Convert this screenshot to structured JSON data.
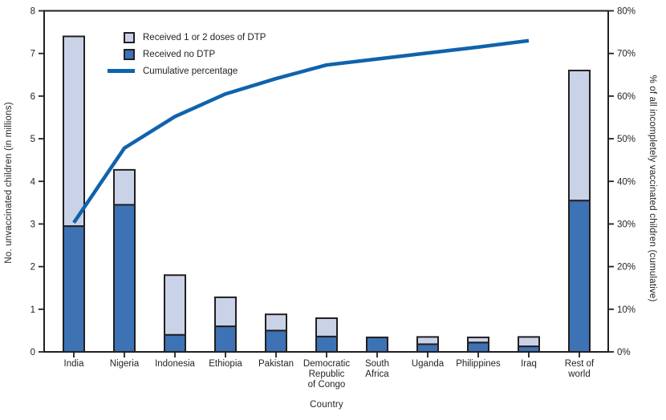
{
  "chart_data": {
    "type": "bar",
    "subtype": "pareto-stacked-bar-with-cumulative-line",
    "title": "",
    "xlabel": "Country",
    "ylabel_left": "No. unvaccinated children (in millions)",
    "ylabel_right": "% of all incompletely vaccinated children (cumulative)",
    "ylim_left": [
      0,
      8
    ],
    "ylim_right_pct": [
      0,
      80
    ],
    "yticks_left": [
      0,
      1,
      2,
      3,
      4,
      5,
      6,
      7,
      8
    ],
    "yticks_right_pct": [
      0,
      10,
      20,
      30,
      40,
      50,
      60,
      70,
      80
    ],
    "grid": "off",
    "legend_position": "top-left-inside",
    "categories": [
      "India",
      "Nigeria",
      "Indonesia",
      "Ethiopia",
      "Pakistan",
      "Democratic\nRepublic\nof Congo",
      "South\nAfrica",
      "Uganda",
      "Philippines",
      "Iraq",
      "Rest of\nworld"
    ],
    "series": [
      {
        "name": "Received no DTP",
        "stack_order": "bottom",
        "color": "#3d72b5",
        "values": [
          2.95,
          3.45,
          0.4,
          0.6,
          0.5,
          0.36,
          0.34,
          0.18,
          0.22,
          0.13,
          3.55
        ]
      },
      {
        "name": "Received 1 or 2 doses of DTP",
        "stack_order": "top",
        "color": "#c9d2e7",
        "values": [
          4.45,
          0.82,
          1.4,
          0.68,
          0.38,
          0.43,
          0.0,
          0.17,
          0.12,
          0.22,
          3.05
        ]
      }
    ],
    "bar_totals": [
      7.4,
      4.27,
      1.8,
      1.28,
      0.88,
      0.79,
      0.34,
      0.35,
      0.34,
      0.35,
      6.6
    ],
    "line_series": {
      "name": "Cumulative percentage",
      "color": "#0f63ac",
      "axis": "right",
      "values_pct": [
        30.3,
        47.8,
        55.2,
        60.5,
        64.1,
        67.3,
        68.7,
        70.1,
        71.5,
        73.0
      ],
      "note": "line drawn from India through Iraq only"
    },
    "frame_color": "#231f20",
    "text_color": "#231f20"
  },
  "legend": {
    "items": [
      {
        "label": "Received 1 or 2 doses of DTP",
        "swatch": "square",
        "color": "#c9d2e7"
      },
      {
        "label": "Received no DTP",
        "swatch": "square",
        "color": "#3d72b5"
      },
      {
        "label": "Cumulative percentage",
        "swatch": "line",
        "color": "#0f63ac"
      }
    ]
  }
}
